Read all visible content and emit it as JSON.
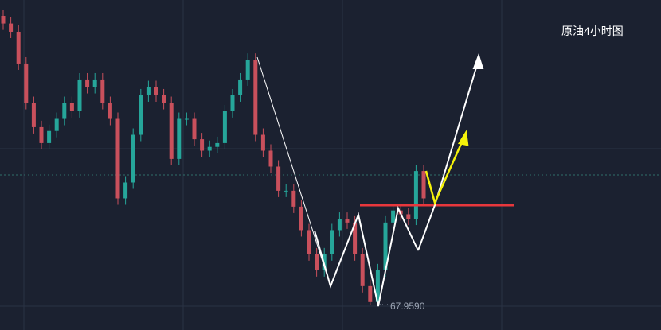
{
  "chart_data": {
    "type": "candlestick",
    "title": "原油4小时图",
    "ylim": [
      67.56,
      72.75
    ],
    "low_label": "67.9590",
    "up_color": "#26a69a",
    "down_color": "#c9505c",
    "candles": [
      [
        72.5,
        72.6,
        72.28,
        72.38
      ],
      [
        72.38,
        72.48,
        72.15,
        72.25
      ],
      [
        72.25,
        72.35,
        71.65,
        71.75
      ],
      [
        71.75,
        71.85,
        71.03,
        71.13
      ],
      [
        71.13,
        71.23,
        70.65,
        70.75
      ],
      [
        70.75,
        70.85,
        70.4,
        70.5
      ],
      [
        70.5,
        70.79,
        70.4,
        70.69
      ],
      [
        70.69,
        70.98,
        70.59,
        70.88
      ],
      [
        70.88,
        71.23,
        70.78,
        71.13
      ],
      [
        71.13,
        71.23,
        70.9,
        71.0
      ],
      [
        71.0,
        71.6,
        70.9,
        71.5
      ],
      [
        71.5,
        71.6,
        71.28,
        71.38
      ],
      [
        71.38,
        71.6,
        71.28,
        71.5
      ],
      [
        71.5,
        71.6,
        71.03,
        71.13
      ],
      [
        71.13,
        71.23,
        70.78,
        70.88
      ],
      [
        70.88,
        70.98,
        69.53,
        69.63
      ],
      [
        69.63,
        69.98,
        69.53,
        69.88
      ],
      [
        69.88,
        70.73,
        69.78,
        70.63
      ],
      [
        70.63,
        71.35,
        70.53,
        71.25
      ],
      [
        71.25,
        71.48,
        71.15,
        71.38
      ],
      [
        71.38,
        71.48,
        71.15,
        71.25
      ],
      [
        71.25,
        71.35,
        71.03,
        71.13
      ],
      [
        71.13,
        71.23,
        70.15,
        70.25
      ],
      [
        70.25,
        70.98,
        70.15,
        70.88
      ],
      [
        70.88,
        70.98,
        70.78,
        70.88
      ],
      [
        70.88,
        70.98,
        70.46,
        70.56
      ],
      [
        70.56,
        70.66,
        70.28,
        70.38
      ],
      [
        70.38,
        70.54,
        70.28,
        70.44
      ],
      [
        70.44,
        70.6,
        70.34,
        70.5
      ],
      [
        70.5,
        71.1,
        70.4,
        71.0
      ],
      [
        71.0,
        71.35,
        70.9,
        71.25
      ],
      [
        71.25,
        71.6,
        71.15,
        71.5
      ],
      [
        71.5,
        71.91,
        71.4,
        71.81
      ],
      [
        71.81,
        71.91,
        70.53,
        70.63
      ],
      [
        70.63,
        70.73,
        70.28,
        70.38
      ],
      [
        70.38,
        70.48,
        70.03,
        70.13
      ],
      [
        70.13,
        70.23,
        69.65,
        69.75
      ],
      [
        69.75,
        69.85,
        69.65,
        69.75
      ],
      [
        69.75,
        69.85,
        69.4,
        69.5
      ],
      [
        69.5,
        69.6,
        69.03,
        69.13
      ],
      [
        69.13,
        69.23,
        68.65,
        68.75
      ],
      [
        68.75,
        68.85,
        68.4,
        68.5
      ],
      [
        68.5,
        68.85,
        68.4,
        68.75
      ],
      [
        68.75,
        69.23,
        68.65,
        69.13
      ],
      [
        69.13,
        69.41,
        69.03,
        69.31
      ],
      [
        69.31,
        69.41,
        69.15,
        69.25
      ],
      [
        69.25,
        69.35,
        68.65,
        68.75
      ],
      [
        68.75,
        68.85,
        68.15,
        68.25
      ],
      [
        68.25,
        68.35,
        67.959,
        68.0
      ],
      [
        68.0,
        68.6,
        67.97,
        68.5
      ],
      [
        68.5,
        69.35,
        68.4,
        69.25
      ],
      [
        69.25,
        69.54,
        69.15,
        69.44
      ],
      [
        69.44,
        69.54,
        69.28,
        69.38
      ],
      [
        69.38,
        69.48,
        69.21,
        69.31
      ],
      [
        69.31,
        70.16,
        69.21,
        70.06
      ],
      [
        70.06,
        70.16,
        69.53,
        69.63
      ]
    ]
  }
}
